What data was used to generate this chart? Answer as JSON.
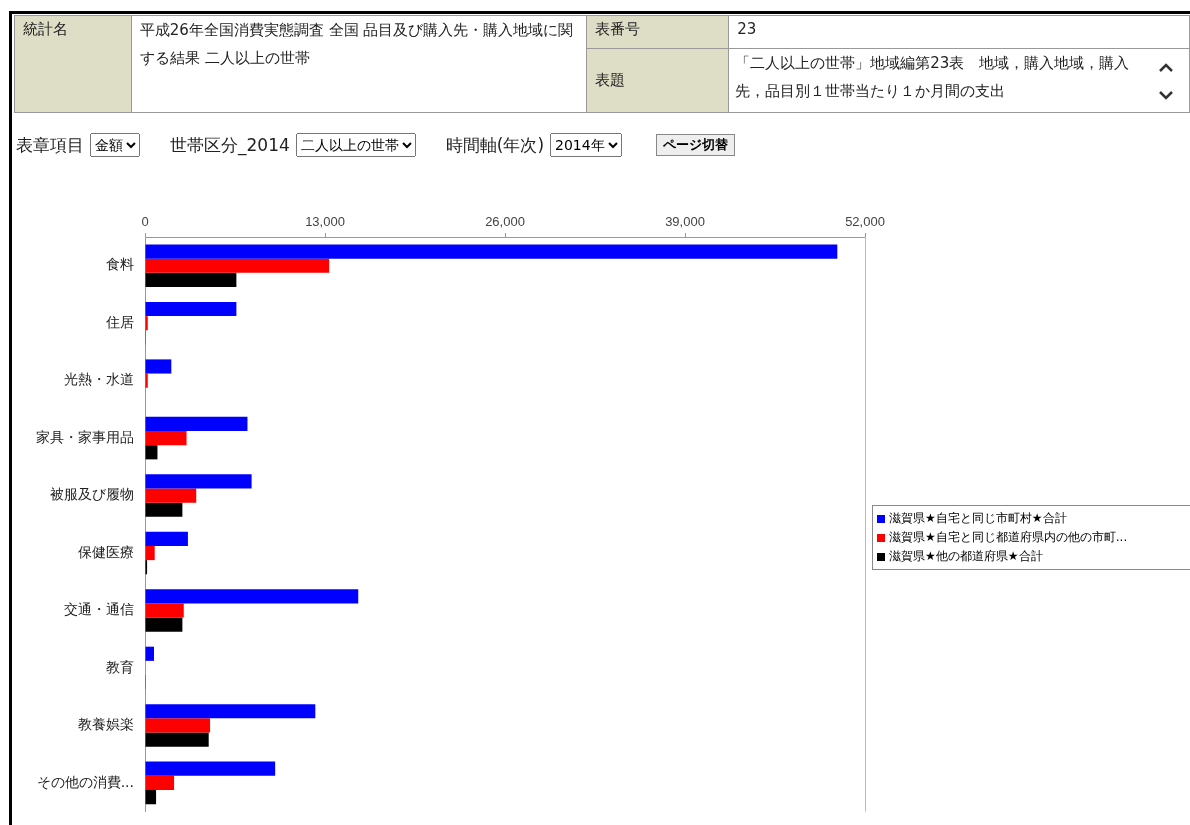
{
  "chart_data": {
    "type": "bar",
    "orientation": "horizontal",
    "categories": [
      "食料",
      "住居",
      "光熱・水道",
      "家具・家事用品",
      "被服及び履物",
      "保健医療",
      "交通・通信",
      "教育",
      "教養娯楽",
      "その他の消費..."
    ],
    "series": [
      {
        "name": "滋賀県★自宅と同じ市町村★合計",
        "color": "#0000ff",
        "values": [
          50000,
          6600,
          1900,
          7400,
          7700,
          3100,
          15400,
          650,
          12300,
          9400
        ]
      },
      {
        "name": "滋賀県★自宅と同じ都道府県内の他の市町...",
        "color": "#ff0000",
        "values": [
          13300,
          200,
          200,
          3000,
          3700,
          700,
          2800,
          null,
          4700,
          2100
        ]
      },
      {
        "name": "滋賀県★他の都道府県★合計",
        "color": "#000000",
        "values": [
          6600,
          20,
          0,
          900,
          2700,
          150,
          2700,
          20,
          4600,
          800
        ]
      }
    ],
    "xlim": [
      0,
      52000
    ],
    "xticks": [
      {
        "value": 0,
        "label": "0"
      },
      {
        "value": 13000,
        "label": "13,000"
      },
      {
        "value": 26000,
        "label": "26,000"
      },
      {
        "value": 39000,
        "label": "39,000"
      },
      {
        "value": 52000,
        "label": "52,000"
      }
    ],
    "grid": false,
    "legend": "right",
    "annotations": [
      "統計名",
      "平成26年全国消費実態調査 全国 品目及び購入先・購入地域に関する結果 二人以上の世帯",
      "表番号",
      "23",
      "表題",
      "「二人以上の世帯」地域編第23表　地域，購入地域，購入先，品目別１世帯当たり１か月間の支出",
      "表章項目",
      "金額",
      "世帯区分_2014",
      "二人以上の世帯",
      "時間軸(年次)",
      "2014年",
      "ページ切替"
    ]
  }
}
